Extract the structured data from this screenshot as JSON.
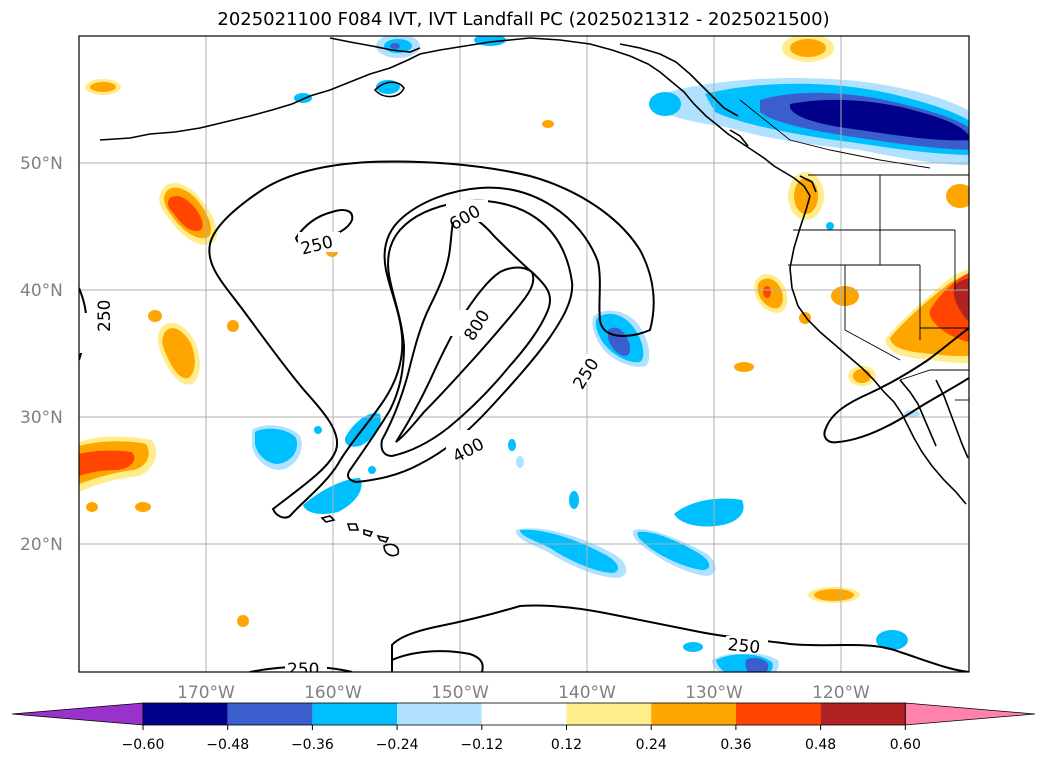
{
  "title": "2025021100 F084 IVT, IVT Landfall PC (2025021312 - 2025021500)",
  "map": {
    "lon_range": [
      -180,
      -110
    ],
    "lat_range": [
      10,
      60
    ],
    "lat_labels": [
      "50°N",
      "40°N",
      "30°N",
      "20°N"
    ],
    "lon_labels": [
      "170°W",
      "160°W",
      "150°W",
      "140°W",
      "130°W",
      "120°W"
    ],
    "contour_labels": [
      "250",
      "250",
      "600",
      "800",
      "250",
      "400",
      "250",
      "250"
    ]
  },
  "colorbar": {
    "colors": [
      "#9932cc",
      "#00008b",
      "#3a5fcd",
      "#00bfff",
      "#b0e2ff",
      "#ffffff",
      "#ffec8b",
      "#ffa500",
      "#ff4500",
      "#b22222",
      "#ff82ab"
    ],
    "ticks": [
      "−0.60",
      "−0.48",
      "−0.36",
      "−0.24",
      "−0.12",
      "0.12",
      "0.24",
      "0.36",
      "0.48",
      "0.60"
    ]
  }
}
